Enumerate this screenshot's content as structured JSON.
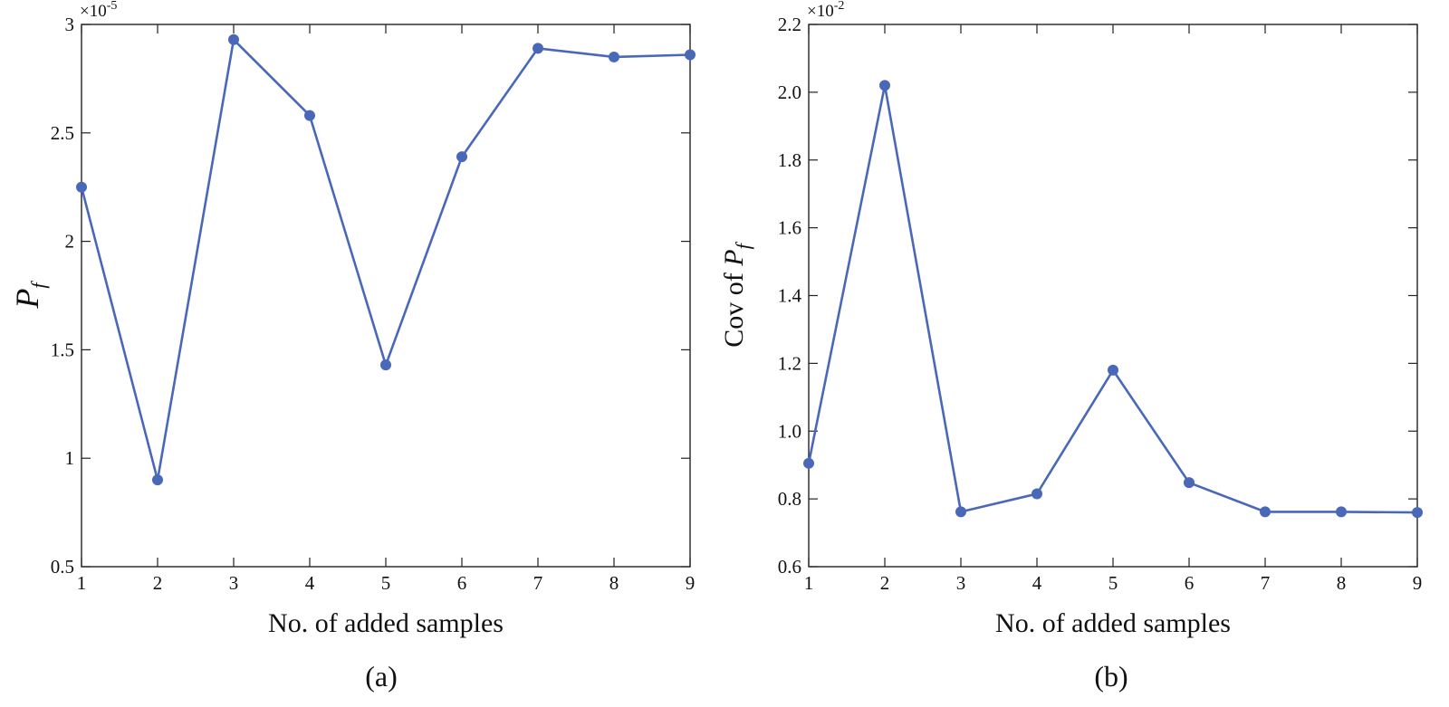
{
  "chart_data": [
    {
      "type": "line",
      "panel": "(a)",
      "xlabel": "No. of added samples",
      "ylabel_main": "P",
      "ylabel_sub": "f",
      "ylabel_prefix": "",
      "multiplier": "×10",
      "multiplier_exp": "-5",
      "xlim": [
        1,
        9
      ],
      "ylim": [
        0.5,
        3
      ],
      "xticks": [
        "1",
        "2",
        "3",
        "4",
        "5",
        "6",
        "7",
        "8",
        "9"
      ],
      "yticks": [
        0.5,
        1,
        1.5,
        2,
        2.5,
        3
      ],
      "ytick_labels": [
        "0.5",
        "1",
        "1.5",
        "2",
        "2.5",
        "3"
      ],
      "color": "#4a68b8",
      "grid": false,
      "series": [
        {
          "x": [
            1,
            2,
            3,
            4,
            5,
            6,
            7,
            8,
            9
          ],
          "values": [
            2.25,
            0.9,
            2.93,
            2.58,
            1.43,
            2.39,
            2.89,
            2.85,
            2.86
          ]
        }
      ]
    },
    {
      "type": "line",
      "panel": "(b)",
      "xlabel": "No. of added samples",
      "ylabel_main": "P",
      "ylabel_sub": "f",
      "ylabel_prefix": "Cov of ",
      "multiplier": "×10",
      "multiplier_exp": "-2",
      "xlim": [
        1,
        9
      ],
      "ylim": [
        0.6,
        2.2
      ],
      "xticks": [
        "1",
        "2",
        "3",
        "4",
        "5",
        "6",
        "7",
        "8",
        "9"
      ],
      "yticks": [
        0.6,
        0.8,
        1.0,
        1.2,
        1.4,
        1.6,
        1.8,
        2.0,
        2.2
      ],
      "ytick_labels": [
        "0.6",
        "0.8",
        "1.0",
        "1.2",
        "1.4",
        "1.6",
        "1.8",
        "2.0",
        "2.2"
      ],
      "color": "#4a68b8",
      "grid": false,
      "series": [
        {
          "x": [
            1,
            2,
            3,
            4,
            5,
            6,
            7,
            8,
            9
          ],
          "values": [
            0.905,
            2.02,
            0.762,
            0.815,
            1.18,
            0.848,
            0.762,
            0.762,
            0.76
          ]
        }
      ]
    }
  ]
}
